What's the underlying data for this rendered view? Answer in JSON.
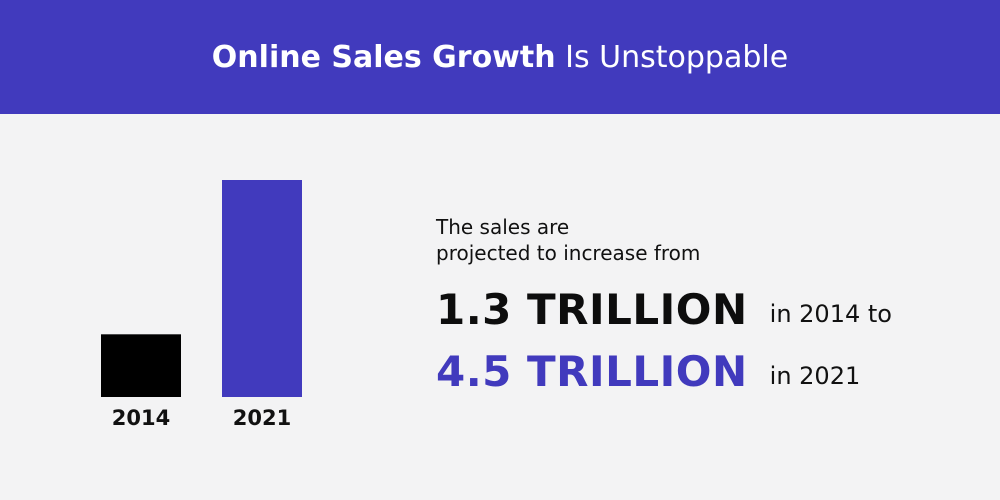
{
  "header": {
    "title_strong": "Online Sales Growth",
    "title_light": "Is Unstoppable"
  },
  "chart_data": {
    "type": "bar",
    "categories": [
      "2014",
      "2021"
    ],
    "values": [
      1.3,
      4.5
    ],
    "title": "",
    "xlabel": "",
    "ylabel": "",
    "ylim": [
      0,
      4.5
    ],
    "unit": "TRILLION",
    "colors": [
      "#000000",
      "#413abd"
    ]
  },
  "description": {
    "line1": "The sales are",
    "line2": "projected to increase from",
    "value_2014": "1.3 TRILLION",
    "suffix_2014": "in 2014 to",
    "value_2021": "4.5 TRILLION",
    "suffix_2021": "in 2021"
  },
  "colors": {
    "accent": "#413abd",
    "background": "#f3f3f4",
    "text": "#111111"
  }
}
